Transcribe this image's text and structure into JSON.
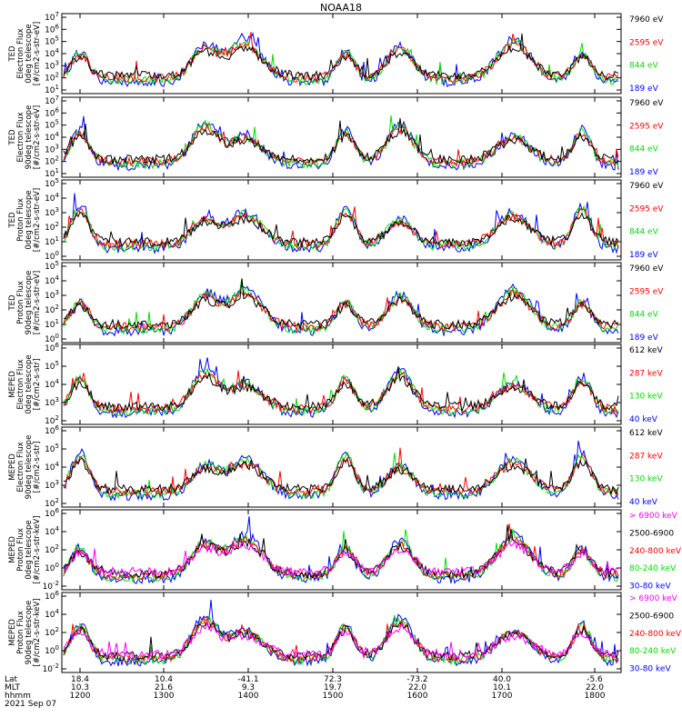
{
  "title": "NOAA18",
  "colors": {
    "black": "#000000",
    "red": "#ff0000",
    "green": "#00dd00",
    "blue": "#0000ff",
    "magenta": "#ff00ff"
  },
  "chart_data": [
    {
      "type": "line",
      "ylabel_lines": [
        "TED",
        "Electron Flux",
        "0deg telescope",
        "[#/cm2-s-str-eV]"
      ],
      "y_ticks": [
        "10^1",
        "10^2",
        "10^3",
        "10^4",
        "10^5",
        "10^6",
        "10^7"
      ],
      "yscale": "log",
      "series": [
        {
          "name": "7960 eV",
          "color": "#000000"
        },
        {
          "name": "2595 eV",
          "color": "#ff0000"
        },
        {
          "name": "844 eV",
          "color": "#00dd00"
        },
        {
          "name": "189 eV",
          "color": "#0000ff"
        }
      ]
    },
    {
      "type": "line",
      "ylabel_lines": [
        "TED",
        "Electron Flux",
        "90deg telescope",
        "[#/cm2-s-str-eV]"
      ],
      "y_ticks": [
        "10^1",
        "10^2",
        "10^3",
        "10^4",
        "10^5",
        "10^6",
        "10^7"
      ],
      "yscale": "log",
      "series": [
        {
          "name": "7960 eV",
          "color": "#000000"
        },
        {
          "name": "2595 eV",
          "color": "#ff0000"
        },
        {
          "name": "844 eV",
          "color": "#00dd00"
        },
        {
          "name": "189 eV",
          "color": "#0000ff"
        }
      ]
    },
    {
      "type": "line",
      "ylabel_lines": [
        "TED",
        "Proton Flux",
        "0deg telescope",
        "[#/cm2-s-str-eV]"
      ],
      "y_ticks": [
        "10^0",
        "10^1",
        "10^2",
        "10^3",
        "10^4",
        "10^5"
      ],
      "yscale": "log",
      "series": [
        {
          "name": "7960 eV",
          "color": "#000000"
        },
        {
          "name": "2595 eV",
          "color": "#ff0000"
        },
        {
          "name": "844 eV",
          "color": "#00dd00"
        },
        {
          "name": "189 eV",
          "color": "#0000ff"
        }
      ]
    },
    {
      "type": "line",
      "ylabel_lines": [
        "TED",
        "Proton Flux",
        "90deg telescope",
        "[#/cm2-s-str-eV]"
      ],
      "y_ticks": [
        "10^0",
        "10^1",
        "10^2",
        "10^3",
        "10^4",
        "10^5"
      ],
      "yscale": "log",
      "series": [
        {
          "name": "7960 eV",
          "color": "#000000"
        },
        {
          "name": "2595 eV",
          "color": "#ff0000"
        },
        {
          "name": "844 eV",
          "color": "#00dd00"
        },
        {
          "name": "189 eV",
          "color": "#0000ff"
        }
      ]
    },
    {
      "type": "line",
      "ylabel_lines": [
        "MEPED",
        "Electron Flux",
        "0deg telescope",
        "[#/cm2-s-str]"
      ],
      "y_ticks": [
        "10^2",
        "10^3",
        "10^4",
        "10^5",
        "10^6"
      ],
      "yscale": "log",
      "series": [
        {
          "name": "612 keV",
          "color": "#000000"
        },
        {
          "name": "287 keV",
          "color": "#ff0000"
        },
        {
          "name": "130 keV",
          "color": "#00dd00"
        },
        {
          "name": "40 keV",
          "color": "#0000ff"
        }
      ]
    },
    {
      "type": "line",
      "ylabel_lines": [
        "MEPED",
        "Electron Flux",
        "90deg telescope",
        "[#/cm2-s-str]"
      ],
      "y_ticks": [
        "10^2",
        "10^3",
        "10^4",
        "10^5",
        "10^6"
      ],
      "yscale": "log",
      "series": [
        {
          "name": "612 keV",
          "color": "#000000"
        },
        {
          "name": "287 keV",
          "color": "#ff0000"
        },
        {
          "name": "130 keV",
          "color": "#00dd00"
        },
        {
          "name": "40 keV",
          "color": "#0000ff"
        }
      ]
    },
    {
      "type": "line",
      "ylabel_lines": [
        "MEPED",
        "Proton Flux",
        "0deg telescope",
        "[#/cm2-s-str-keV]"
      ],
      "y_ticks": [
        "10^-2",
        "10^0",
        "10^2",
        "10^4",
        "10^6"
      ],
      "yscale": "log",
      "series": [
        {
          "name": "> 6900 keV",
          "color": "#ff00ff"
        },
        {
          "name": "2500-6900",
          "color": "#000000"
        },
        {
          "name": "240-800 keV",
          "color": "#ff0000"
        },
        {
          "name": "80-240 keV",
          "color": "#00dd00"
        },
        {
          "name": "30-80 keV",
          "color": "#0000ff"
        }
      ]
    },
    {
      "type": "line",
      "ylabel_lines": [
        "MEPED",
        "Proton Flux",
        "90deg telescope",
        "[#/cm2-s-str-keV]"
      ],
      "y_ticks": [
        "10^-2",
        "10^0",
        "10^2",
        "10^4",
        "10^6"
      ],
      "yscale": "log",
      "series": [
        {
          "name": "> 6900 keV",
          "color": "#ff00ff"
        },
        {
          "name": "2500-6900",
          "color": "#000000"
        },
        {
          "name": "240-800 keV",
          "color": "#ff0000"
        },
        {
          "name": "80-240 keV",
          "color": "#00dd00"
        },
        {
          "name": "30-80 keV",
          "color": "#0000ff"
        }
      ]
    }
  ],
  "x_axis": {
    "row_labels": [
      "Lat",
      "MLT",
      "hhmm"
    ],
    "date": "2021 Sep 07",
    "ticks": [
      {
        "Lat": "18.4",
        "MLT": "10.3",
        "hhmm": "1200"
      },
      {
        "Lat": "10.4",
        "MLT": "21.6",
        "hhmm": "1300"
      },
      {
        "Lat": "-41.1",
        "MLT": "9.3",
        "hhmm": "1400"
      },
      {
        "Lat": "72.3",
        "MLT": "19.7",
        "hhmm": "1500"
      },
      {
        "Lat": "-73.2",
        "MLT": "22.0",
        "hhmm": "1600"
      },
      {
        "Lat": "40.0",
        "MLT": "10.1",
        "hhmm": "1700"
      },
      {
        "Lat": "-5.6",
        "MLT": "22.0",
        "hhmm": "1800"
      }
    ]
  }
}
